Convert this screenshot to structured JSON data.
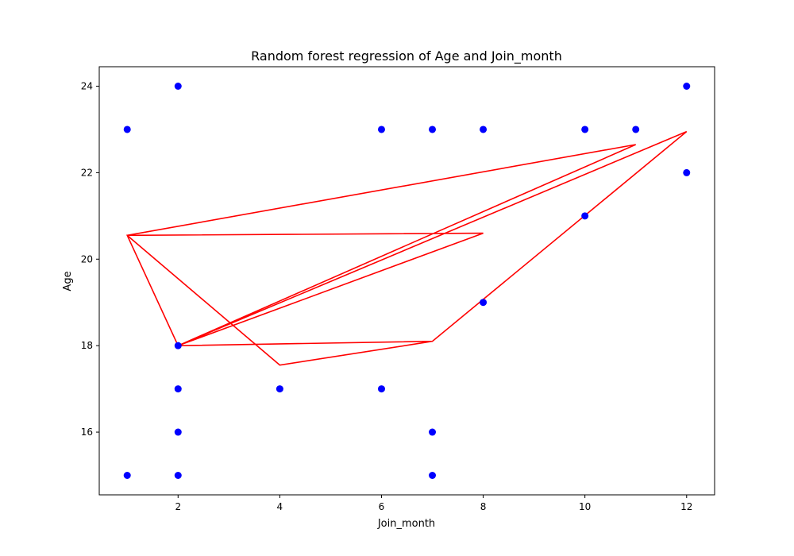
{
  "chart_data": {
    "type": "scatter",
    "title": "Random forest regression of Age and Join_month",
    "xlabel": "Join_month",
    "ylabel": "Age",
    "xlim": [
      0.45,
      12.55
    ],
    "ylim": [
      14.55,
      24.45
    ],
    "xticks": [
      2,
      4,
      6,
      8,
      10,
      12
    ],
    "yticks": [
      16,
      18,
      20,
      22,
      24
    ],
    "grid": false,
    "colors": {
      "points": "#0000ff",
      "line": "#ff0000"
    },
    "series": [
      {
        "kind": "scatter",
        "x": [
          1,
          2,
          6,
          7,
          8,
          10,
          11,
          12,
          12,
          10,
          8,
          2,
          2,
          4,
          6,
          2,
          7,
          1,
          2,
          7
        ],
        "y": [
          23,
          24,
          23,
          23,
          23,
          23,
          23,
          24,
          22,
          21,
          19,
          18,
          17,
          17,
          17,
          16,
          16,
          15,
          15,
          15
        ]
      },
      {
        "kind": "line",
        "x": [
          11,
          1,
          8,
          2,
          12,
          2,
          11,
          2,
          8,
          1,
          2,
          7,
          12,
          2,
          12,
          2,
          1,
          4,
          7,
          2
        ],
        "y": [
          22.65,
          20.55,
          20.6,
          18.0,
          22.95,
          18.0,
          22.65,
          18.0,
          20.6,
          20.55,
          18.0,
          18.1,
          22.95,
          18.0,
          22.95,
          18.0,
          20.55,
          17.55,
          18.1,
          18.0
        ]
      }
    ]
  }
}
